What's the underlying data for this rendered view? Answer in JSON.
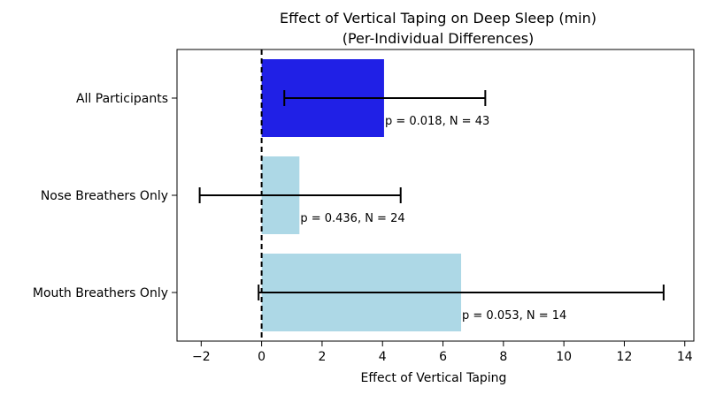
{
  "chart_data": {
    "type": "bar",
    "orientation": "horizontal",
    "title": "Effect of Vertical Taping on Deep Sleep (min)",
    "subtitle": "(Per-Individual Differences)",
    "xlabel": "Effect of Vertical Taping",
    "ylabel": "",
    "xlim": [
      -2.8,
      14.3
    ],
    "xticks": [
      -2,
      0,
      2,
      4,
      6,
      8,
      10,
      12,
      14
    ],
    "xtick_labels": [
      "−2",
      "0",
      "2",
      "4",
      "6",
      "8",
      "10",
      "12",
      "14"
    ],
    "reference_line": {
      "x": 0,
      "style": "dashed",
      "color": "#000000"
    },
    "categories": [
      "All Participants",
      "Nose Breathers Only",
      "Mouth Breathers Only"
    ],
    "values": [
      4.05,
      1.25,
      6.6
    ],
    "ci_low": [
      0.75,
      -2.05,
      -0.1
    ],
    "ci_high": [
      7.4,
      4.6,
      13.3
    ],
    "bar_colors": [
      "#2020e6",
      "#add8e6",
      "#add8e6"
    ],
    "annotations": [
      "p = 0.018, N = 43",
      "p = 0.436, N = 24",
      "p = 0.053, N = 14"
    ],
    "grid": false
  }
}
